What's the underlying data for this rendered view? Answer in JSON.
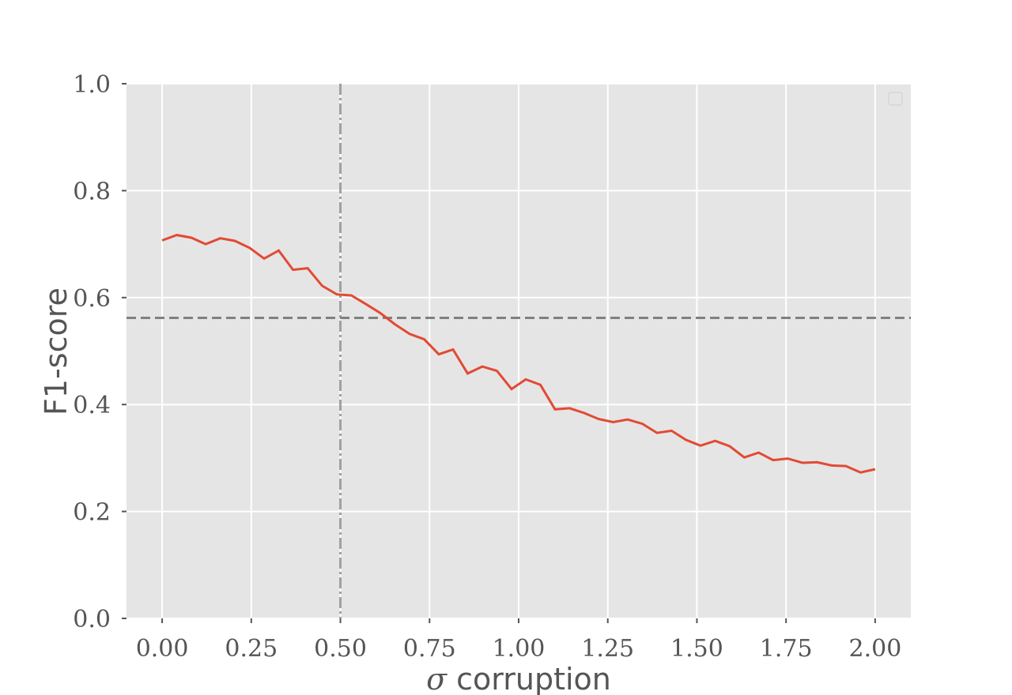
{
  "chart_data": {
    "type": "line",
    "xlabel_symbol": "σ",
    "xlabel_text": " corruption",
    "ylabel": "F1-score",
    "xlim": [
      -0.1,
      2.1
    ],
    "ylim": [
      0.0,
      1.0
    ],
    "xticks": [
      0.0,
      0.25,
      0.5,
      0.75,
      1.0,
      1.25,
      1.5,
      1.75,
      2.0
    ],
    "xtick_labels": [
      "0.00",
      "0.25",
      "0.50",
      "0.75",
      "1.00",
      "1.25",
      "1.50",
      "1.75",
      "2.00"
    ],
    "yticks": [
      0.0,
      0.2,
      0.4,
      0.6,
      0.8,
      1.0
    ],
    "ytick_labels": [
      "0.0",
      "0.2",
      "0.4",
      "0.6",
      "0.8",
      "1.0"
    ],
    "grid": true,
    "legend": "top-right (empty)",
    "colors": {
      "plot_background": "#e5e5e5",
      "grid": "#ffffff",
      "line": "#e24a33",
      "reference_lines": "#808080"
    },
    "reference_lines": {
      "horizontal_y": 0.562,
      "vertical_x": 0.5
    },
    "series": [
      {
        "x": [
          0.0,
          0.041,
          0.082,
          0.122,
          0.163,
          0.204,
          0.245,
          0.286,
          0.327,
          0.367,
          0.408,
          0.449,
          0.49,
          0.531,
          0.571,
          0.612,
          0.653,
          0.694,
          0.735,
          0.776,
          0.816,
          0.857,
          0.898,
          0.939,
          0.98,
          1.02,
          1.061,
          1.102,
          1.143,
          1.184,
          1.224,
          1.265,
          1.306,
          1.347,
          1.388,
          1.429,
          1.469,
          1.51,
          1.551,
          1.592,
          1.633,
          1.673,
          1.714,
          1.755,
          1.796,
          1.837,
          1.878,
          1.918,
          1.959,
          2.0
        ],
        "values": [
          0.707,
          0.717,
          0.712,
          0.7,
          0.711,
          0.706,
          0.693,
          0.673,
          0.688,
          0.652,
          0.655,
          0.622,
          0.606,
          0.604,
          0.588,
          0.571,
          0.55,
          0.532,
          0.522,
          0.494,
          0.503,
          0.458,
          0.471,
          0.463,
          0.429,
          0.447,
          0.437,
          0.391,
          0.393,
          0.384,
          0.373,
          0.367,
          0.372,
          0.364,
          0.347,
          0.351,
          0.334,
          0.323,
          0.332,
          0.322,
          0.301,
          0.31,
          0.296,
          0.299,
          0.291,
          0.292,
          0.286,
          0.285,
          0.273,
          0.279
        ]
      }
    ]
  }
}
